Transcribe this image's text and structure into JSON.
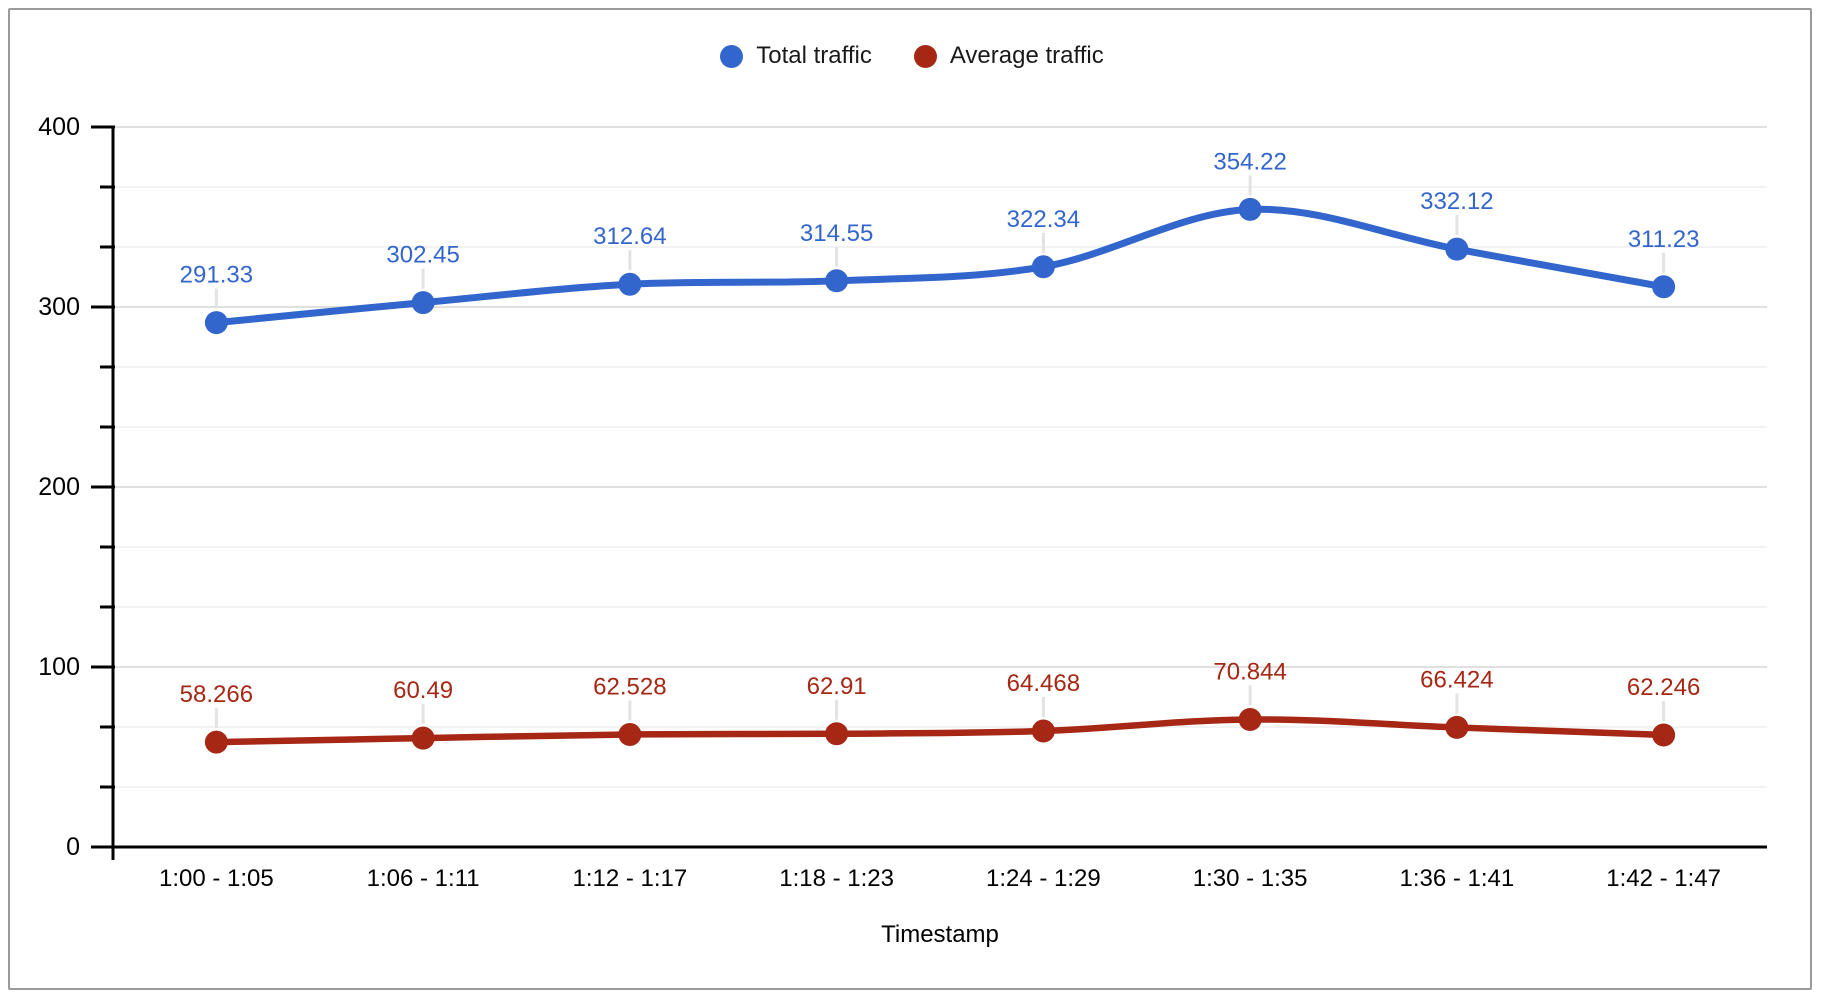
{
  "frame": {
    "background": "#ffffff",
    "border_color": "#9a9a9a"
  },
  "legend": {
    "position": "top",
    "items": [
      {
        "label": "Total traffic",
        "color": "#3366cc"
      },
      {
        "label": "Average traffic",
        "color": "#a52714"
      }
    ]
  },
  "chart_data": {
    "type": "line",
    "smooth": true,
    "title": "",
    "xlabel": "Timestamp",
    "ylabel": "",
    "categories": [
      "1:00 - 1:05",
      "1:06 - 1:11",
      "1:12 - 1:17",
      "1:18 - 1:23",
      "1:24 - 1:29",
      "1:30 - 1:35",
      "1:36 - 1:41",
      "1:42 - 1:47"
    ],
    "series": [
      {
        "name": "Total traffic",
        "color": "#3366cc",
        "values": [
          291.33,
          302.45,
          312.64,
          314.55,
          322.34,
          354.22,
          332.12,
          311.23
        ]
      },
      {
        "name": "Average traffic",
        "color": "#a52714",
        "values": [
          58.266,
          60.49,
          62.528,
          62.91,
          64.468,
          70.844,
          66.424,
          62.246
        ]
      }
    ],
    "ylim": [
      0,
      400
    ],
    "y_major_ticks": [
      0,
      100,
      200,
      300,
      400
    ],
    "y_minor_divisions_per_major": 3,
    "grid": true,
    "legend_position": "top",
    "data_labels_visible": true
  },
  "axis_style": {
    "axis_color": "#000000",
    "tick_label_color": "#000000",
    "grid_major_color": "#e0e0e0",
    "grid_minor_color": "#f2f2f2",
    "label_stub_color": "#e3e3e3"
  }
}
